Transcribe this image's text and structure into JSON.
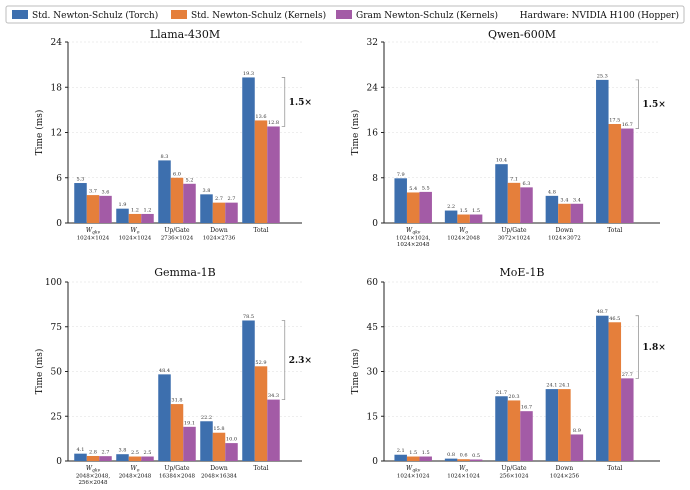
{
  "legend": {
    "series": [
      {
        "name": "Std. Newton-Schulz (Torch)",
        "color": "#3d6fae"
      },
      {
        "name": "Std. Newton-Schulz (Kernels)",
        "color": "#e57f3b"
      },
      {
        "name": "Gram Newton-Schulz (Kernels)",
        "color": "#a35ba6"
      }
    ],
    "hardware": "Hardware: NVIDIA H100 (Hopper)"
  },
  "chart_data": [
    {
      "type": "bar",
      "title": "Llama-430M",
      "ylabel": "Time (ms)",
      "ylim": [
        0,
        24
      ],
      "yticks": [
        0,
        6,
        12,
        18,
        24
      ],
      "categories": [
        {
          "label": "W_qkv",
          "base": "W",
          "sub": "qkv",
          "size": [
            "1024×1024"
          ]
        },
        {
          "label": "W_o",
          "base": "W",
          "sub": "o",
          "size": [
            "1024×1024"
          ]
        },
        {
          "label": "Up/Gate",
          "size": [
            "2736×1024"
          ]
        },
        {
          "label": "Down",
          "size": [
            "1024×2736"
          ]
        },
        {
          "label": "Total",
          "size": []
        }
      ],
      "series": [
        {
          "name": "Std. Newton-Schulz (Torch)",
          "values": [
            5.3,
            1.9,
            8.3,
            3.8,
            19.3
          ],
          "labels": [
            "5.3",
            "1.9",
            "8.3",
            "3.8",
            "19.3"
          ]
        },
        {
          "name": "Std. Newton-Schulz (Kernels)",
          "values": [
            3.7,
            1.2,
            6.0,
            2.7,
            13.6
          ],
          "labels": [
            "3.7",
            "1.2",
            "6.0",
            "2.7",
            "13.6"
          ]
        },
        {
          "name": "Gram Newton-Schulz (Kernels)",
          "values": [
            3.6,
            1.2,
            5.2,
            2.7,
            12.8
          ],
          "labels": [
            "3.6",
            "1.2",
            "5.2",
            "2.7",
            "12.8"
          ]
        }
      ],
      "speedup": "1.5×",
      "grid": true
    },
    {
      "type": "bar",
      "title": "Qwen-600M",
      "ylabel": "Time (ms)",
      "ylim": [
        0,
        32
      ],
      "yticks": [
        0,
        8,
        16,
        24,
        32
      ],
      "categories": [
        {
          "label": "W_qkv",
          "base": "W",
          "sub": "qkv",
          "size": [
            "1024×1024,",
            "1024×2048"
          ]
        },
        {
          "label": "W_o",
          "base": "W",
          "sub": "o",
          "size": [
            "1024×2048"
          ]
        },
        {
          "label": "Up/Gate",
          "size": [
            "3072×1024"
          ]
        },
        {
          "label": "Down",
          "size": [
            "1024×3072"
          ]
        },
        {
          "label": "Total",
          "size": []
        }
      ],
      "series": [
        {
          "name": "Std. Newton-Schulz (Torch)",
          "values": [
            7.9,
            2.2,
            10.4,
            4.8,
            25.3
          ],
          "labels": [
            "7.9",
            "2.2",
            "10.4",
            "4.8",
            "25.3"
          ]
        },
        {
          "name": "Std. Newton-Schulz (Kernels)",
          "values": [
            5.4,
            1.5,
            7.1,
            3.4,
            17.5
          ],
          "labels": [
            "5.4",
            "1.5",
            "7.1",
            "3.4",
            "17.5"
          ]
        },
        {
          "name": "Gram Newton-Schulz (Kernels)",
          "values": [
            5.5,
            1.5,
            6.3,
            3.4,
            16.7
          ],
          "labels": [
            "5.5",
            "1.5",
            "6.3",
            "3.4",
            "16.7"
          ]
        }
      ],
      "speedup": "1.5×",
      "grid": true
    },
    {
      "type": "bar",
      "title": "Gemma-1B",
      "ylabel": "Time (ms)",
      "ylim": [
        0,
        100
      ],
      "yticks": [
        0,
        25,
        50,
        75,
        100
      ],
      "categories": [
        {
          "label": "W_qkv",
          "base": "W",
          "sub": "qkv",
          "size": [
            "2048×2048,",
            "256×2048"
          ]
        },
        {
          "label": "W_o",
          "base": "W",
          "sub": "o",
          "size": [
            "2048×2048"
          ]
        },
        {
          "label": "Up/Gate",
          "size": [
            "16384×2048"
          ]
        },
        {
          "label": "Down",
          "size": [
            "2048×16384"
          ]
        },
        {
          "label": "Total",
          "size": []
        }
      ],
      "series": [
        {
          "name": "Std. Newton-Schulz (Torch)",
          "values": [
            4.1,
            3.8,
            48.4,
            22.2,
            78.5
          ],
          "labels": [
            "4.1",
            "3.8",
            "48.4",
            "22.2",
            "78.5"
          ]
        },
        {
          "name": "Std. Newton-Schulz (Kernels)",
          "values": [
            2.8,
            2.5,
            31.8,
            15.8,
            52.9
          ],
          "labels": [
            "2.8",
            "2.5",
            "31.8",
            "15.8",
            "52.9"
          ]
        },
        {
          "name": "Gram Newton-Schulz (Kernels)",
          "values": [
            2.7,
            2.5,
            19.1,
            10.0,
            34.3
          ],
          "labels": [
            "2.7",
            "2.5",
            "19.1",
            "10.0",
            "34.3"
          ]
        }
      ],
      "speedup": "2.3×",
      "grid": true
    },
    {
      "type": "bar",
      "title": "MoE-1B",
      "ylabel": "Time (ms)",
      "ylim": [
        0,
        60
      ],
      "yticks": [
        0,
        15,
        30,
        45,
        60
      ],
      "categories": [
        {
          "label": "W_qkv",
          "base": "W",
          "sub": "qkv",
          "size": [
            "1024×1024"
          ]
        },
        {
          "label": "W_o",
          "base": "W",
          "sub": "o",
          "size": [
            "1024×1024"
          ]
        },
        {
          "label": "Up/Gate",
          "size": [
            "256×1024"
          ]
        },
        {
          "label": "Down",
          "size": [
            "1024×256"
          ]
        },
        {
          "label": "Total",
          "size": []
        }
      ],
      "series": [
        {
          "name": "Std. Newton-Schulz (Torch)",
          "values": [
            2.1,
            0.8,
            21.7,
            24.1,
            48.7
          ],
          "labels": [
            "2.1",
            "0.8",
            "21.7",
            "24.1",
            "48.7"
          ]
        },
        {
          "name": "Std. Newton-Schulz (Kernels)",
          "values": [
            1.5,
            0.6,
            20.3,
            24.1,
            46.5
          ],
          "labels": [
            "1.5",
            "0.6",
            "20.3",
            "24.1",
            "46.5"
          ]
        },
        {
          "name": "Gram Newton-Schulz (Kernels)",
          "values": [
            1.5,
            0.5,
            16.7,
            8.9,
            27.7
          ],
          "labels": [
            "1.5",
            "0.5",
            "16.7",
            "8.9",
            "27.7"
          ]
        }
      ],
      "speedup": "1.8×",
      "grid": true
    }
  ]
}
